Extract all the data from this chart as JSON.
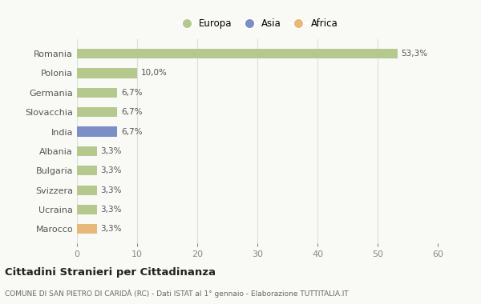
{
  "categories": [
    "Romania",
    "Polonia",
    "Germania",
    "Slovacchia",
    "India",
    "Albania",
    "Bulgaria",
    "Svizzera",
    "Ucraina",
    "Marocco"
  ],
  "values": [
    53.3,
    10.0,
    6.7,
    6.7,
    6.7,
    3.3,
    3.3,
    3.3,
    3.3,
    3.3
  ],
  "labels": [
    "53,3%",
    "10,0%",
    "6,7%",
    "6,7%",
    "6,7%",
    "3,3%",
    "3,3%",
    "3,3%",
    "3,3%",
    "3,3%"
  ],
  "bar_colors": [
    "#b5c98e",
    "#b5c98e",
    "#b5c98e",
    "#b5c98e",
    "#7b8ec8",
    "#b5c98e",
    "#b5c98e",
    "#b5c98e",
    "#b5c98e",
    "#e8b87a"
  ],
  "legend_labels": [
    "Europa",
    "Asia",
    "Africa"
  ],
  "legend_colors": [
    "#b5c98e",
    "#7b8ec8",
    "#e8b87a"
  ],
  "xlim": [
    0,
    60
  ],
  "xticks": [
    0,
    10,
    20,
    30,
    40,
    50,
    60
  ],
  "title": "Cittadini Stranieri per Cittadinanza",
  "subtitle": "COMUNE DI SAN PIETRO DI CARIDÀ (RC) - Dati ISTAT al 1° gennaio - Elaborazione TUTTITALIA.IT",
  "background_color": "#f9f9f6",
  "grid_color": "#dddddd",
  "bar_height": 0.5
}
